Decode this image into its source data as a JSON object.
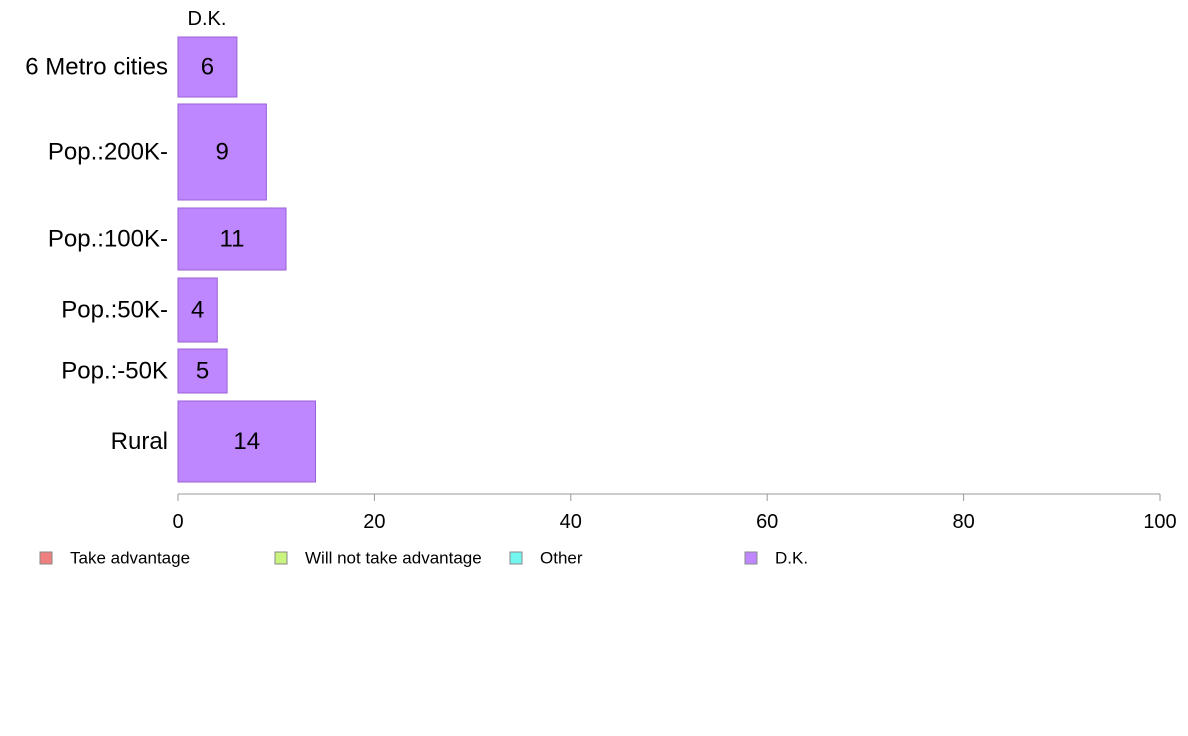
{
  "chart_data": {
    "type": "bar",
    "orientation": "horizontal",
    "stacked": true,
    "column_header": "D.K.",
    "categories": [
      "6 Metro cities",
      "Pop.:200K-",
      "Pop.:100K-",
      "Pop.:50K-",
      "Pop.:-50K",
      "Rural"
    ],
    "series": [
      {
        "name": "Take advantage",
        "color": "#f08080",
        "values": [
          0,
          0,
          0,
          0,
          0,
          0
        ]
      },
      {
        "name": "Will not take advantage",
        "color": "#c9f57e",
        "values": [
          0,
          0,
          0,
          0,
          0,
          0
        ]
      },
      {
        "name": "Other",
        "color": "#73f5f0",
        "values": [
          0,
          0,
          0,
          0,
          0,
          0
        ]
      },
      {
        "name": "D.K.",
        "color": "#bf87ff",
        "values": [
          6,
          9,
          11,
          4,
          5,
          14
        ]
      }
    ],
    "bar_labels": [
      "6",
      "9",
      "11",
      "4",
      "5",
      "14"
    ],
    "x_ticks": [
      "0",
      "20",
      "40",
      "60",
      "80",
      "100"
    ],
    "xlim": [
      0,
      100
    ],
    "xlabel": "",
    "ylabel": "",
    "grid": false,
    "legend_position": "bottom"
  }
}
